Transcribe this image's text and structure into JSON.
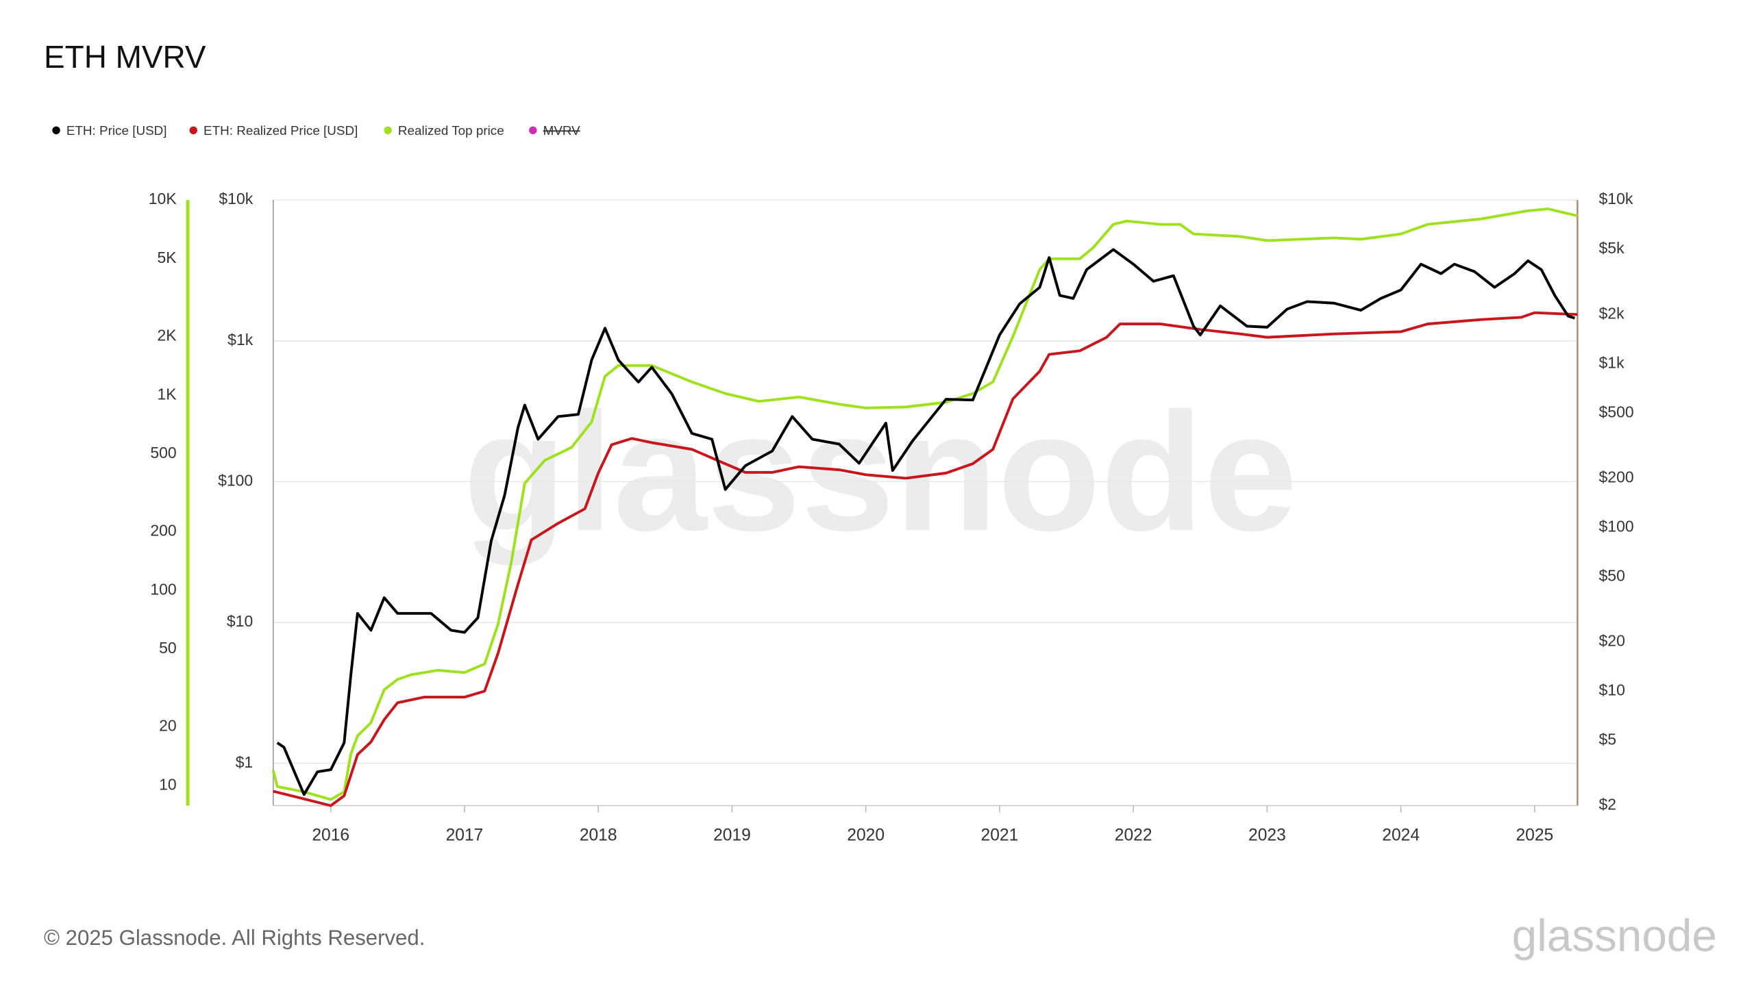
{
  "chart_data": {
    "type": "line",
    "title": "ETH MVRV",
    "log_scale": true,
    "grid": true,
    "legend_position": "top-left",
    "watermark": "glassnode",
    "footer": "© 2025 Glassnode. All Rights Reserved.",
    "logo": "glassnode",
    "xlim": [
      2015.57,
      2025.32
    ],
    "xticks": [
      2016,
      2017,
      2018,
      2019,
      2020,
      2021,
      2022,
      2023,
      2024,
      2025
    ],
    "ylim": [
      0.5,
      10000
    ],
    "yticks": [
      {
        "value": 10000,
        "label": "$10k"
      },
      {
        "value": 1000,
        "label": "$1k"
      },
      {
        "value": 100,
        "label": "$100"
      },
      {
        "value": 10,
        "label": "$10"
      },
      {
        "value": 1,
        "label": "$1"
      }
    ],
    "y2lim": [
      2,
      10000
    ],
    "y2ticks": [
      {
        "value": 10000,
        "label": "$10k"
      },
      {
        "value": 5000,
        "label": "$5k"
      },
      {
        "value": 2000,
        "label": "$2k"
      },
      {
        "value": 1000,
        "label": "$1k"
      },
      {
        "value": 500,
        "label": "$500"
      },
      {
        "value": 200,
        "label": "$200"
      },
      {
        "value": 100,
        "label": "$100"
      },
      {
        "value": 50,
        "label": "$50"
      },
      {
        "value": 20,
        "label": "$20"
      },
      {
        "value": 10,
        "label": "$10"
      },
      {
        "value": 5,
        "label": "$5"
      },
      {
        "value": 2,
        "label": "$2"
      }
    ],
    "y3lim": [
      7.9,
      10000
    ],
    "y3ticks": [
      {
        "value": 10000,
        "label": "10K"
      },
      {
        "value": 5000,
        "label": "5K"
      },
      {
        "value": 2000,
        "label": "2K"
      },
      {
        "value": 1000,
        "label": "1K"
      },
      500,
      200,
      100,
      50,
      20,
      10
    ],
    "series": [
      {
        "name": "ETH: Price [USD]",
        "color": "#000000",
        "axis": "y",
        "x": [
          2015.6,
          2015.65,
          2015.8,
          2015.9,
          2016.0,
          2016.1,
          2016.15,
          2016.2,
          2016.3,
          2016.4,
          2016.5,
          2016.6,
          2016.75,
          2016.9,
          2017.0,
          2017.1,
          2017.2,
          2017.3,
          2017.4,
          2017.45,
          2017.55,
          2017.7,
          2017.85,
          2017.95,
          2018.05,
          2018.15,
          2018.3,
          2018.4,
          2018.55,
          2018.7,
          2018.85,
          2018.95,
          2019.1,
          2019.3,
          2019.45,
          2019.6,
          2019.8,
          2019.95,
          2020.15,
          2020.2,
          2020.35,
          2020.6,
          2020.8,
          2021.0,
          2021.15,
          2021.3,
          2021.37,
          2021.45,
          2021.55,
          2021.65,
          2021.85,
          2022.0,
          2022.15,
          2022.3,
          2022.45,
          2022.5,
          2022.65,
          2022.85,
          2023.0,
          2023.15,
          2023.3,
          2023.5,
          2023.7,
          2023.85,
          2024.0,
          2024.15,
          2024.3,
          2024.4,
          2024.55,
          2024.7,
          2024.85,
          2024.95,
          2025.05,
          2025.15,
          2025.25,
          2025.3
        ],
        "values": [
          1.4,
          1.3,
          0.6,
          0.87,
          0.9,
          1.4,
          4.2,
          11.6,
          8.8,
          15,
          11.6,
          11.6,
          11.6,
          8.8,
          8.5,
          10.8,
          38,
          80,
          242,
          350,
          200,
          290,
          300,
          730,
          1230,
          730,
          510,
          650,
          420,
          220,
          200,
          88,
          130,
          165,
          290,
          200,
          185,
          135,
          260,
          120,
          195,
          385,
          380,
          1100,
          1830,
          2400,
          3900,
          2100,
          2000,
          3200,
          4450,
          3500,
          2650,
          2900,
          1270,
          1100,
          1770,
          1270,
          1250,
          1680,
          1900,
          1850,
          1650,
          2000,
          2300,
          3500,
          3000,
          3500,
          3100,
          2400,
          3000,
          3700,
          3200,
          2100,
          1500,
          1450
        ]
      },
      {
        "name": "ETH: Realized Price [USD]",
        "color": "#c8161d",
        "axis": "y2",
        "x": [
          2015.57,
          2015.8,
          2016.0,
          2016.1,
          2016.2,
          2016.3,
          2016.4,
          2016.5,
          2016.7,
          2017.0,
          2017.15,
          2017.25,
          2017.4,
          2017.5,
          2017.7,
          2017.9,
          2018.0,
          2018.1,
          2018.25,
          2018.4,
          2018.7,
          2018.9,
          2019.1,
          2019.3,
          2019.5,
          2019.8,
          2020.0,
          2020.3,
          2020.6,
          2020.8,
          2020.95,
          2021.1,
          2021.3,
          2021.37,
          2021.6,
          2021.8,
          2021.9,
          2022.2,
          2022.5,
          2022.8,
          2023.0,
          2023.5,
          2024.0,
          2024.2,
          2024.6,
          2024.9,
          2025.0,
          2025.32
        ],
        "values": [
          2.45,
          2.2,
          2.0,
          2.3,
          4.1,
          4.9,
          6.7,
          8.5,
          9.2,
          9.2,
          10,
          17,
          45,
          84,
          106,
          130,
          215,
          320,
          350,
          330,
          300,
          255,
          217,
          217,
          235,
          225,
          210,
          200,
          215,
          245,
          300,
          610,
          900,
          1140,
          1200,
          1450,
          1750,
          1750,
          1620,
          1520,
          1450,
          1520,
          1570,
          1750,
          1860,
          1920,
          2050,
          2000
        ]
      },
      {
        "name": "Realized Top price",
        "color": "#9fe01f",
        "axis": "y3",
        "x": [
          2015.57,
          2015.6,
          2015.8,
          2016.0,
          2016.1,
          2016.15,
          2016.2,
          2016.3,
          2016.4,
          2016.5,
          2016.6,
          2016.8,
          2017.0,
          2017.15,
          2017.25,
          2017.35,
          2017.45,
          2017.6,
          2017.8,
          2017.95,
          2018.05,
          2018.15,
          2018.4,
          2018.7,
          2018.95,
          2019.2,
          2019.5,
          2019.8,
          2020.0,
          2020.3,
          2020.6,
          2020.8,
          2020.95,
          2021.1,
          2021.3,
          2021.37,
          2021.6,
          2021.7,
          2021.85,
          2021.95,
          2022.2,
          2022.35,
          2022.45,
          2022.8,
          2023.0,
          2023.5,
          2023.7,
          2024.0,
          2024.2,
          2024.6,
          2024.95,
          2025.1,
          2025.32
        ],
        "values": [
          12,
          9.9,
          9.3,
          8.5,
          9.3,
          14.5,
          18,
          21,
          31,
          35,
          37,
          39,
          38,
          42,
          67,
          140,
          354,
          464,
          540,
          730,
          1250,
          1420,
          1420,
          1170,
          1020,
          930,
          980,
          900,
          860,
          870,
          920,
          1020,
          1170,
          2000,
          4400,
          5000,
          5000,
          5700,
          7500,
          7800,
          7500,
          7500,
          6700,
          6500,
          6200,
          6400,
          6300,
          6700,
          7500,
          8000,
          8800,
          9000,
          8300
        ]
      },
      {
        "name": "MVRV",
        "color": "#d12ab8",
        "visible": false
      }
    ]
  }
}
